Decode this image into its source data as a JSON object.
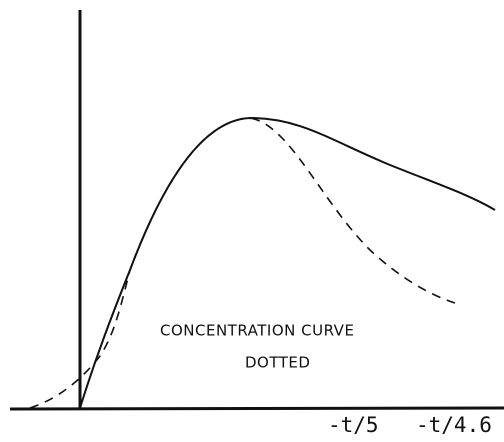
{
  "annotations": [
    "CONCENTRATION CURVE",
    "DOTTED"
  ],
  "axis_labels": [
    "-t/5",
    "-t/4.6"
  ]
}
